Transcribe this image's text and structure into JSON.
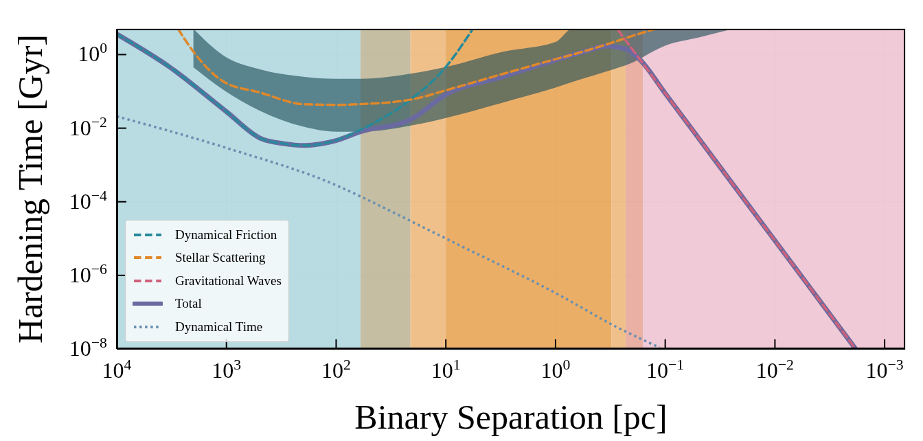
{
  "chart_data": {
    "type": "line",
    "xlabel": "Binary Separation [pc]",
    "ylabel": "Hardening Time [Gyr]",
    "log": "xy",
    "grid": true,
    "legend": "bottom left",
    "xlim": [
      10000,
      0.00065
    ],
    "ylim": [
      1e-08,
      5
    ],
    "xticks": [
      {
        "value": 10000,
        "label": "10$^{4}$"
      },
      {
        "value": 1000,
        "label": "10$^{3}$"
      },
      {
        "value": 100,
        "label": "10$^{2}$"
      },
      {
        "value": 10,
        "label": "10$^{1}$"
      },
      {
        "value": 1,
        "label": "10$^{0}$"
      },
      {
        "value": 0.1,
        "label": "10$^{−1}$"
      },
      {
        "value": 0.01,
        "label": "10$^{−2}$"
      },
      {
        "value": 0.001,
        "label": "10$^{−3}$"
      }
    ],
    "yticks": [
      {
        "value": 1,
        "label": "10$^{0}$"
      },
      {
        "value": 0.01,
        "label": "10$^{−2}$"
      },
      {
        "value": 0.0001,
        "label": "10$^{−4}$"
      },
      {
        "value": 1e-06,
        "label": "10$^{−6}$"
      },
      {
        "value": 1e-08,
        "label": "10$^{−8}$"
      }
    ],
    "bands": [
      {
        "axis": "x",
        "from": 10000,
        "to": 60,
        "color": "#b3d8df"
      },
      {
        "axis": "x",
        "from": 60,
        "to": 21,
        "color": "#c0b99b"
      },
      {
        "axis": "x",
        "from": 21,
        "to": 10,
        "color": "#efbb80"
      },
      {
        "axis": "x",
        "from": 10,
        "to": 0.31,
        "color": "#e9a75a"
      },
      {
        "axis": "x",
        "from": 0.31,
        "to": 0.23,
        "color": "#efbb80"
      },
      {
        "axis": "x",
        "from": 0.23,
        "to": 0.16,
        "color": "#e8a99c"
      },
      {
        "axis": "x",
        "from": 0.16,
        "to": 0.00065,
        "color": "#efc5d2"
      }
    ],
    "series": [
      {
        "name": "Dynamical Friction",
        "color": "#268a9a",
        "line_style": "dashed",
        "x": [
          10000,
          3300,
          1000,
          490,
          300,
          195,
          100,
          60,
          21,
          10,
          5.7
        ],
        "values": [
          3.6,
          0.46,
          0.028,
          0.0053,
          0.0038,
          0.0034,
          0.0047,
          0.009,
          0.06,
          0.46,
          4.9
        ]
      },
      {
        "name": "Stellar Scattering",
        "color": "#e0882a",
        "line_style": "dashed",
        "x": [
          2750,
          2000,
          1050,
          500,
          200,
          100,
          60,
          20,
          10,
          3,
          1,
          0.7,
          0.34,
          0.2,
          0.126,
          0.1,
          0.05,
          0.024
        ],
        "values": [
          4.9,
          1.2,
          0.18,
          0.094,
          0.045,
          0.043,
          0.045,
          0.061,
          0.107,
          0.3,
          0.75,
          1.0,
          1.9,
          3.2,
          4.9,
          null,
          null,
          null
        ],
        "lower": [
          null,
          0.45,
          0.107,
          0.03,
          0.011,
          0.008,
          0.008,
          0.012,
          0.019,
          0.05,
          0.127,
          0.18,
          0.35,
          0.6,
          1.27,
          1.75,
          2.9,
          5
        ],
        "upper": [
          null,
          5,
          0.92,
          0.4,
          0.25,
          0.22,
          0.22,
          0.31,
          0.46,
          1.2,
          2.2,
          5,
          5,
          5,
          5,
          5,
          5,
          5
        ]
      },
      {
        "name": "Gravitational Waves",
        "color": "#d0607a",
        "line_style": "dashed",
        "x": [
          0.27,
          0.2,
          0.168,
          0.15,
          0.1,
          0.05,
          0.02,
          0.01,
          0.005,
          0.002,
          0.00184
        ],
        "values": [
          4.7,
          1.41,
          0.7,
          0.445,
          0.088,
          0.0055,
          0.00014,
          8.8e-06,
          5.5e-07,
          1.4e-08,
          1e-08
        ]
      },
      {
        "name": "Total",
        "color": "#6a6aa0",
        "line_style": "solid",
        "x": [
          10000,
          3300,
          1000,
          490,
          300,
          195,
          100,
          60,
          21,
          10,
          3,
          1,
          0.5,
          0.35,
          0.22,
          0.168,
          0.1,
          0.05,
          0.02,
          0.01,
          0.005,
          0.002,
          0.00184
        ],
        "values": [
          3.6,
          0.46,
          0.028,
          0.0053,
          0.0038,
          0.0034,
          0.0046,
          0.008,
          0.017,
          0.082,
          0.25,
          0.71,
          1.3,
          1.7,
          1.35,
          0.7,
          0.088,
          0.0055,
          0.00014,
          8.8e-06,
          5.5e-07,
          1.4e-08,
          1e-08
        ]
      },
      {
        "name": "Dynamical Time",
        "color": "#6a90b0",
        "line_style": "dotted",
        "x": [
          10000,
          1000,
          97,
          57,
          20,
          9.3,
          0.94,
          0.28,
          0.113
        ],
        "values": [
          0.021,
          0.0029,
          0.00027,
          0.00013,
          2.8e-05,
          9e-06,
          3e-07,
          4e-08,
          1.1e-08
        ]
      }
    ]
  }
}
